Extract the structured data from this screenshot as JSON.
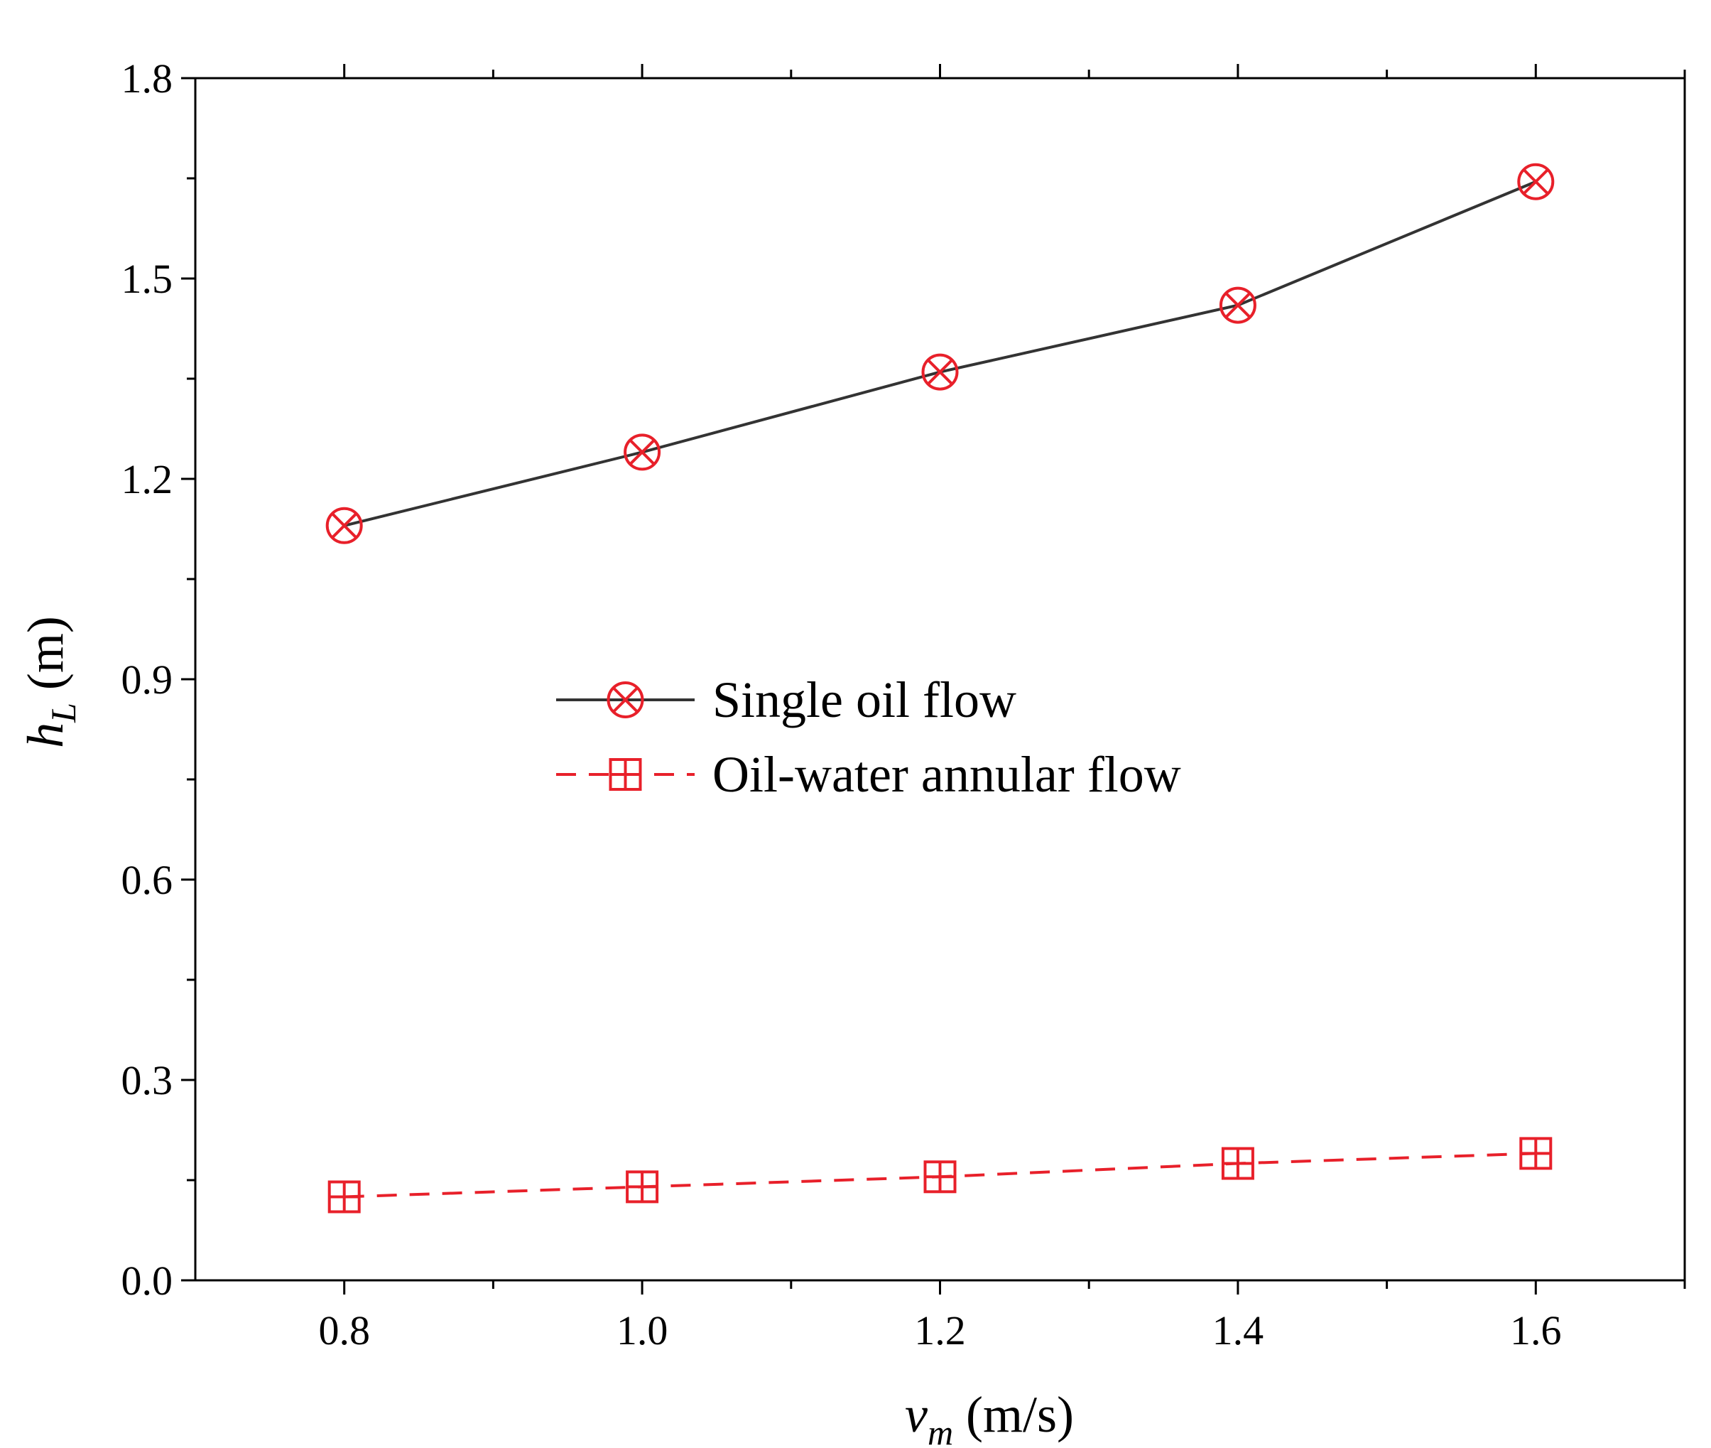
{
  "chart_data": {
    "type": "line",
    "title": "",
    "xlabel": {
      "symbol": "v",
      "subscript": "m",
      "unit": " (m/s)"
    },
    "ylabel": {
      "symbol": "h",
      "subscript": "L",
      "unit": " (m)"
    },
    "xlim": [
      0.7,
      1.7
    ],
    "ylim": [
      0.0,
      1.8
    ],
    "x": [
      0.8,
      1.0,
      1.2,
      1.4,
      1.6
    ],
    "xticks": [
      "0.8",
      "1.0",
      "1.2",
      "1.4",
      "1.6"
    ],
    "xtick_values": [
      0.8,
      1.0,
      1.2,
      1.4,
      1.6
    ],
    "xminor": [
      0.9,
      1.1,
      1.3,
      1.5,
      1.7
    ],
    "yticks": [
      "0.0",
      "0.3",
      "0.6",
      "0.9",
      "1.2",
      "1.5",
      "1.8"
    ],
    "ytick_values": [
      0.0,
      0.3,
      0.6,
      0.9,
      1.2,
      1.5,
      1.8
    ],
    "yminor": [
      0.15,
      0.45,
      0.75,
      1.05,
      1.35,
      1.65
    ],
    "grid": false,
    "legend_position": "center",
    "series": [
      {
        "name": "Single oil flow",
        "values": [
          1.13,
          1.24,
          1.36,
          1.46,
          1.645
        ],
        "line_color": "#333333",
        "line_style": "solid",
        "marker": "circle-x",
        "marker_color": "#e8202a"
      },
      {
        "name": "Oil-water annular flow",
        "values": [
          0.125,
          0.14,
          0.155,
          0.175,
          0.19
        ],
        "line_color": "#e8202a",
        "line_style": "dashed",
        "marker": "square-plus",
        "marker_color": "#e8202a"
      }
    ]
  }
}
